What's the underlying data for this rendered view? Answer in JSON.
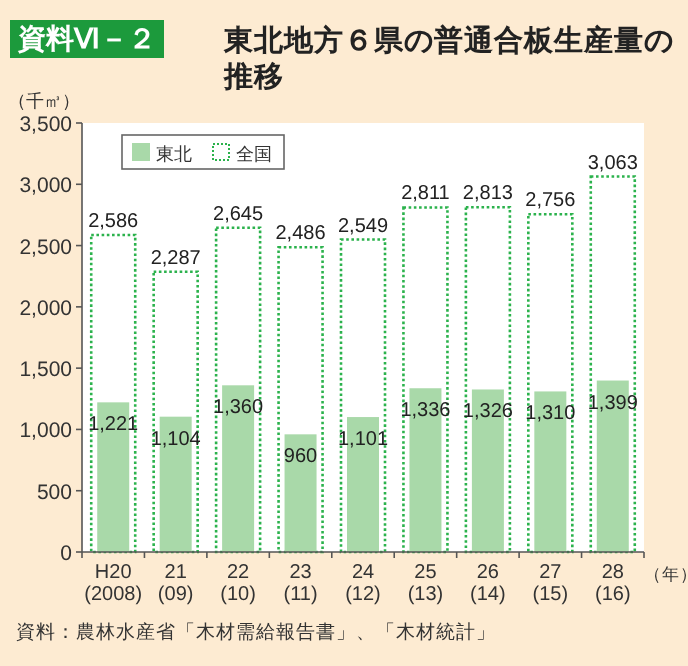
{
  "chart_data": {
    "type": "bar",
    "title": "東北地方６県の普通合板生産量の推移",
    "ylabel": "（千㎥）",
    "xlabel": "（年）",
    "annotations": [
      "資料Ⅵ－２",
      "資料：農林水産省「木材需給報告書」、「木材統計」"
    ],
    "categories": [
      "H20 (2008)",
      "21 (09)",
      "22 (10)",
      "23 (11)",
      "24 (12)",
      "25 (13)",
      "26 (14)",
      "27 (15)",
      "28 (16)"
    ],
    "series": [
      {
        "name": "全国",
        "color": "#2bb24c",
        "line_style": "dotted",
        "values": [
          2586,
          2287,
          2645,
          2486,
          2549,
          2811,
          2813,
          2756,
          3063
        ],
        "value_labels": [
          "2,586",
          "2,287",
          "2,645",
          "2,486",
          "2,549",
          "2,811",
          "2,813",
          "2,756",
          "3,063"
        ]
      },
      {
        "name": "東北",
        "color": "#a9d9a9",
        "line_style": "solid",
        "values": [
          1221,
          1104,
          1360,
          960,
          1101,
          1336,
          1326,
          1310,
          1399
        ],
        "value_labels": [
          "1,221",
          "1,104",
          "1,360",
          "960",
          "1,101",
          "1,336",
          "1,326",
          "1,310",
          "1,399"
        ]
      }
    ],
    "ylim": [
      0,
      3500
    ],
    "yticks": [
      0,
      500,
      {
        "value": 1000,
        "label": "1,000"
      },
      {
        "value": 1500,
        "label": "1,500"
      },
      {
        "value": 2000,
        "label": "2,000"
      },
      {
        "value": 2500,
        "label": "2,500"
      },
      {
        "value": 3000,
        "label": "3,000"
      },
      {
        "value": 3500,
        "label": "3,500"
      }
    ],
    "legend": "top left",
    "grid": false
  }
}
